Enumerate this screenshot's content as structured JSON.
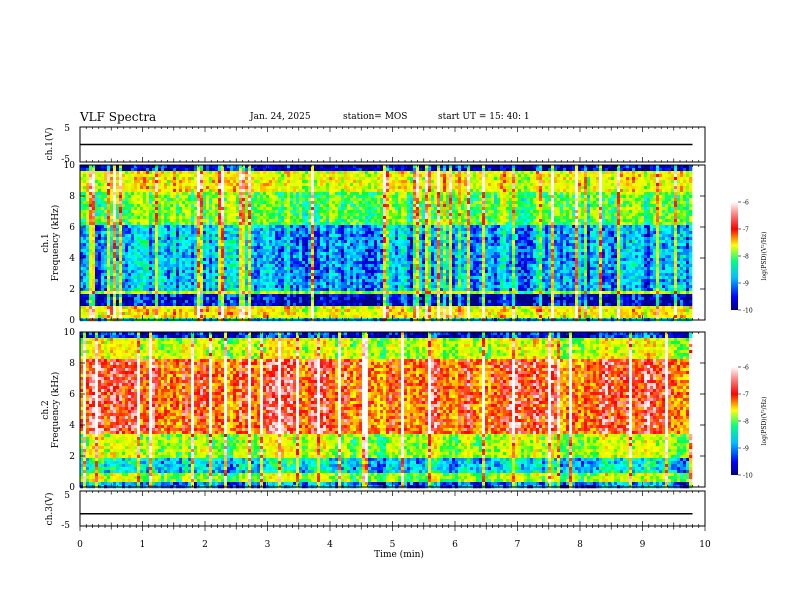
{
  "header": {
    "title": "VLF Spectra",
    "date": "Jan. 24, 2025",
    "station": "station= MOS",
    "start": "start  UT =   15: 40: 1"
  },
  "chart_data": [
    {
      "type": "line",
      "name": "ch1-waveform",
      "ylabel": "ch.1(V)",
      "ylim": [
        -5,
        5
      ],
      "yticks": [
        5,
        -5
      ],
      "xlim": [
        0,
        10
      ],
      "baseline": 0
    },
    {
      "type": "heatmap",
      "name": "ch1-spectrogram",
      "ylabel_line1": "ch.1",
      "ylabel_line2": "Frequency (kHz)",
      "ylim": [
        0,
        10
      ],
      "yticks": [
        0,
        2,
        4,
        6,
        8,
        10
      ],
      "xlim": [
        0,
        9.8
      ],
      "colorbar": {
        "label": "log(PSD)(V²/Hz)",
        "range": [
          -10,
          -6
        ],
        "ticks": [
          -6,
          -7,
          -8,
          -9,
          -10
        ]
      }
    },
    {
      "type": "heatmap",
      "name": "ch2-spectrogram",
      "ylabel_line1": "ch.2",
      "ylabel_line2": "Frequency (kHz)",
      "ylim": [
        0,
        10
      ],
      "yticks": [
        0,
        2,
        4,
        6,
        8,
        10
      ],
      "xlim": [
        0,
        9.8
      ],
      "colorbar": {
        "label": "log(PSD)(V²/Hz)",
        "range": [
          -10,
          -6
        ],
        "ticks": [
          -6,
          -7,
          -8,
          -9,
          -10
        ]
      }
    },
    {
      "type": "line",
      "name": "ch3-waveform",
      "ylabel": "ch.3(V)",
      "ylim": [
        -5,
        5
      ],
      "yticks": [
        5,
        -5
      ],
      "xlim": [
        0,
        10
      ],
      "baseline": -1.5
    }
  ],
  "xaxis": {
    "label": "Time (min)",
    "range": [
      0,
      10
    ],
    "ticks": [
      0,
      1,
      2,
      3,
      4,
      5,
      6,
      7,
      8,
      9,
      10
    ]
  },
  "colors": {
    "colormap": [
      "#000080",
      "#0000ff",
      "#00a0ff",
      "#00ffff",
      "#00ff40",
      "#c0ff00",
      "#ffff00",
      "#ffa000",
      "#ff0000",
      "#ffc8c8",
      "#ffffff"
    ]
  }
}
